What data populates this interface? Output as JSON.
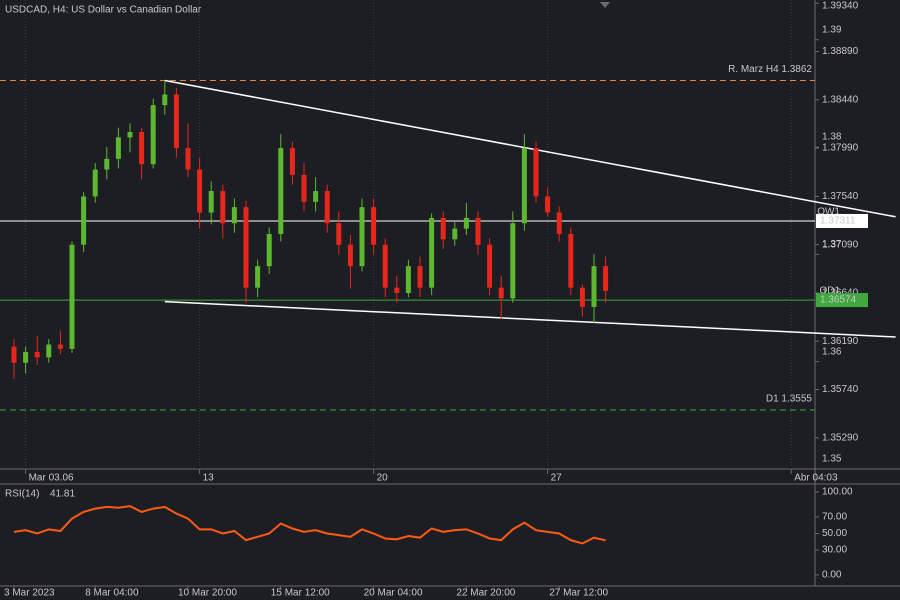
{
  "chart_data": {
    "type": "candlestick",
    "title": "USDCAD, H4:  US Dollar vs Canadian Dollar",
    "up_color": "#5cb82e",
    "down_color": "#e8261c",
    "categories": [
      null,
      "Mar 03.06",
      null,
      null,
      null,
      null,
      null,
      null,
      null,
      null,
      null,
      null,
      null,
      null,
      null,
      null,
      "13",
      null,
      null,
      null,
      null,
      null,
      null,
      null,
      null,
      null,
      null,
      null,
      null,
      null,
      null,
      "20",
      null,
      null,
      null,
      null,
      null,
      null,
      null,
      null,
      null,
      null,
      null,
      null,
      null,
      null,
      "27",
      null,
      null,
      null,
      null,
      null,
      null,
      null,
      null,
      null,
      null,
      null,
      null,
      null,
      null,
      null,
      null,
      null,
      null,
      null,
      null,
      "Abr 04:03"
    ],
    "time_labels": [
      "3 Mar 2023",
      null,
      null,
      null,
      null,
      null,
      null,
      "8 Mar 04:00",
      null,
      null,
      null,
      null,
      null,
      null,
      null,
      "10 Mar 20:00",
      null,
      null,
      null,
      null,
      null,
      null,
      null,
      "15 Mar 12:00",
      null,
      null,
      null,
      null,
      null,
      null,
      null,
      "20 Mar 04:00",
      null,
      null,
      null,
      null,
      null,
      null,
      null,
      "22 Mar 20:00",
      null,
      null,
      null,
      null,
      null,
      null,
      null,
      "27 Mar 12:00",
      null,
      null,
      null,
      null,
      null,
      null,
      null,
      null,
      null,
      null,
      null,
      null,
      null,
      null,
      null,
      null,
      null,
      null,
      null,
      null
    ],
    "open": [
      1.3614,
      1.3599,
      1.3609,
      1.3604,
      1.3616,
      1.3612,
      1.3709,
      1.3754,
      1.3779,
      1.3789,
      1.3809,
      1.3814,
      1.3784,
      1.3839,
      1.3849,
      1.3799,
      1.3779,
      1.3739,
      1.3759,
      1.3729,
      1.3744,
      1.3669,
      1.3689,
      1.3719,
      1.3799,
      1.3774,
      1.3749,
      1.3759,
      1.3729,
      1.3709,
      1.3689,
      1.3744,
      1.3709,
      1.3669,
      1.3664,
      1.3689,
      1.3669,
      1.3734,
      1.3714,
      1.3724,
      1.3734,
      1.3709,
      1.3669,
      1.3659,
      1.3729,
      1.3799,
      1.3754,
      1.3739,
      1.3719,
      1.3669,
      1.3651,
      1.3689,
      null,
      null,
      null,
      null,
      null,
      null,
      null,
      null,
      null,
      null,
      null,
      null,
      null,
      null,
      null,
      null
    ],
    "high": [
      1.3621,
      1.3614,
      1.3624,
      1.3621,
      1.3629,
      1.3712,
      1.3758,
      1.3785,
      1.38,
      1.3818,
      1.3822,
      1.3818,
      1.3845,
      1.3862,
      1.3855,
      1.3822,
      1.379,
      1.3768,
      1.3765,
      1.3752,
      1.375,
      1.3695,
      1.3725,
      1.3812,
      1.3805,
      1.3785,
      1.3772,
      1.3765,
      1.374,
      1.3718,
      1.3752,
      1.3752,
      1.3715,
      1.368,
      1.3695,
      1.3698,
      1.3738,
      1.374,
      1.373,
      1.3748,
      1.374,
      1.3715,
      1.368,
      1.374,
      1.3812,
      1.3805,
      1.3762,
      1.3745,
      1.3725,
      1.3672,
      1.37,
      1.3698,
      null,
      null,
      null,
      null,
      null,
      null,
      null,
      null,
      null,
      null,
      null,
      null,
      null,
      null,
      null,
      null
    ],
    "low": [
      1.3584,
      1.3589,
      1.3597,
      1.3599,
      1.3607,
      1.3608,
      1.3702,
      1.3748,
      1.377,
      1.378,
      1.3795,
      1.377,
      1.378,
      1.383,
      1.379,
      1.3772,
      1.3724,
      1.3728,
      1.3715,
      1.372,
      1.3655,
      1.366,
      1.3682,
      1.3712,
      1.3765,
      1.374,
      1.374,
      1.372,
      1.37,
      1.3668,
      1.3684,
      1.37,
      1.366,
      1.3655,
      1.366,
      1.366,
      1.3662,
      1.3705,
      1.3708,
      1.3718,
      1.37,
      1.3662,
      1.364,
      1.3655,
      1.3722,
      1.3748,
      1.3735,
      1.3712,
      1.3662,
      1.3642,
      1.3636,
      1.3655,
      null,
      null,
      null,
      null,
      null,
      null,
      null,
      null,
      null,
      null,
      null,
      null,
      null,
      null,
      null,
      null
    ],
    "close": [
      1.3599,
      1.3609,
      1.3604,
      1.3616,
      1.3612,
      1.3709,
      1.3754,
      1.3779,
      1.3789,
      1.3809,
      1.3814,
      1.3784,
      1.3839,
      1.3849,
      1.3799,
      1.3779,
      1.3739,
      1.3759,
      1.3729,
      1.3744,
      1.3669,
      1.3689,
      1.3719,
      1.3799,
      1.3774,
      1.3749,
      1.3759,
      1.3729,
      1.3709,
      1.3689,
      1.3744,
      1.3709,
      1.3669,
      1.3664,
      1.3689,
      1.3669,
      1.3734,
      1.3714,
      1.3724,
      1.3734,
      1.3709,
      1.3669,
      1.3659,
      1.3729,
      1.3799,
      1.3754,
      1.3739,
      1.3719,
      1.3669,
      1.3651,
      1.3689,
      1.3666,
      null,
      null,
      null,
      null,
      null,
      null,
      null,
      null,
      null,
      null,
      null,
      null,
      null,
      null,
      null,
      null
    ],
    "ylim": [
      1.35,
      1.3937
    ],
    "yticks": [
      {
        "value": 1.3934,
        "label": "1.39340"
      },
      1.39,
      {
        "value": 1.3889,
        "label": "1.38890"
      },
      {
        "value": 1.3844,
        "label": "1.38440"
      },
      1.38,
      {
        "value": 1.3799,
        "label": "1.37990"
      },
      {
        "value": 1.3754,
        "label": "1.37540"
      },
      {
        "value": 1.3709,
        "label": "1.37090"
      },
      1.37,
      {
        "value": 1.3664,
        "label": "1.36640"
      },
      {
        "value": 1.3619,
        "label": "1.36190"
      },
      1.36,
      {
        "value": 1.3574,
        "label": "1.35740"
      },
      {
        "value": 1.3529,
        "label": "1.35290"
      },
      1.35
    ],
    "levels": [
      {
        "name": "R. Marz H4 1.3862",
        "value": 1.3862,
        "color": "#e8864a",
        "dashed": true,
        "boxed": false
      },
      {
        "name": "OW1",
        "value": 1.37311,
        "color": "#ffffff",
        "dashed": false,
        "boxed": true
      },
      {
        "name": "OD1",
        "value": 1.36574,
        "color": "#3fa83f",
        "dashed": false,
        "boxed": true
      },
      {
        "name": "D1 1.3555",
        "value": 1.3555,
        "color": "#3fa83f",
        "dashed": true,
        "boxed": false
      }
    ],
    "trendlines": [
      {
        "color": "#ffffff",
        "points": [
          [
            13,
            1.3862
          ],
          [
            76,
            1.3735
          ]
        ]
      },
      {
        "color": "#ffffff",
        "points": [
          [
            13,
            1.3656
          ],
          [
            76,
            1.3623
          ]
        ]
      }
    ],
    "rsi": {
      "title": "RSI(14)",
      "color": "#ff5a14",
      "ylim": [
        0,
        100
      ],
      "yticks": [
        {
          "value": 100,
          "label": "100.00"
        },
        {
          "value": 70,
          "label": "70.00"
        },
        {
          "value": 50,
          "label": "50.00"
        },
        {
          "value": 30,
          "label": "30.00"
        },
        {
          "value": 0,
          "label": "0.00"
        }
      ],
      "values": [
        52,
        54,
        50,
        55,
        53,
        68,
        76,
        80,
        82,
        81,
        83,
        76,
        80,
        82,
        74,
        68,
        55,
        55,
        50,
        53,
        42,
        46,
        50,
        62,
        56,
        52,
        54,
        50,
        48,
        46,
        55,
        50,
        44,
        43,
        47,
        45,
        56,
        52,
        54,
        55,
        50,
        44,
        42,
        55,
        63,
        54,
        52,
        50,
        42,
        38,
        45,
        41.81,
        null,
        null,
        null,
        null,
        null,
        null,
        null,
        null,
        null,
        null,
        null,
        null,
        null,
        null,
        null,
        null
      ]
    }
  }
}
